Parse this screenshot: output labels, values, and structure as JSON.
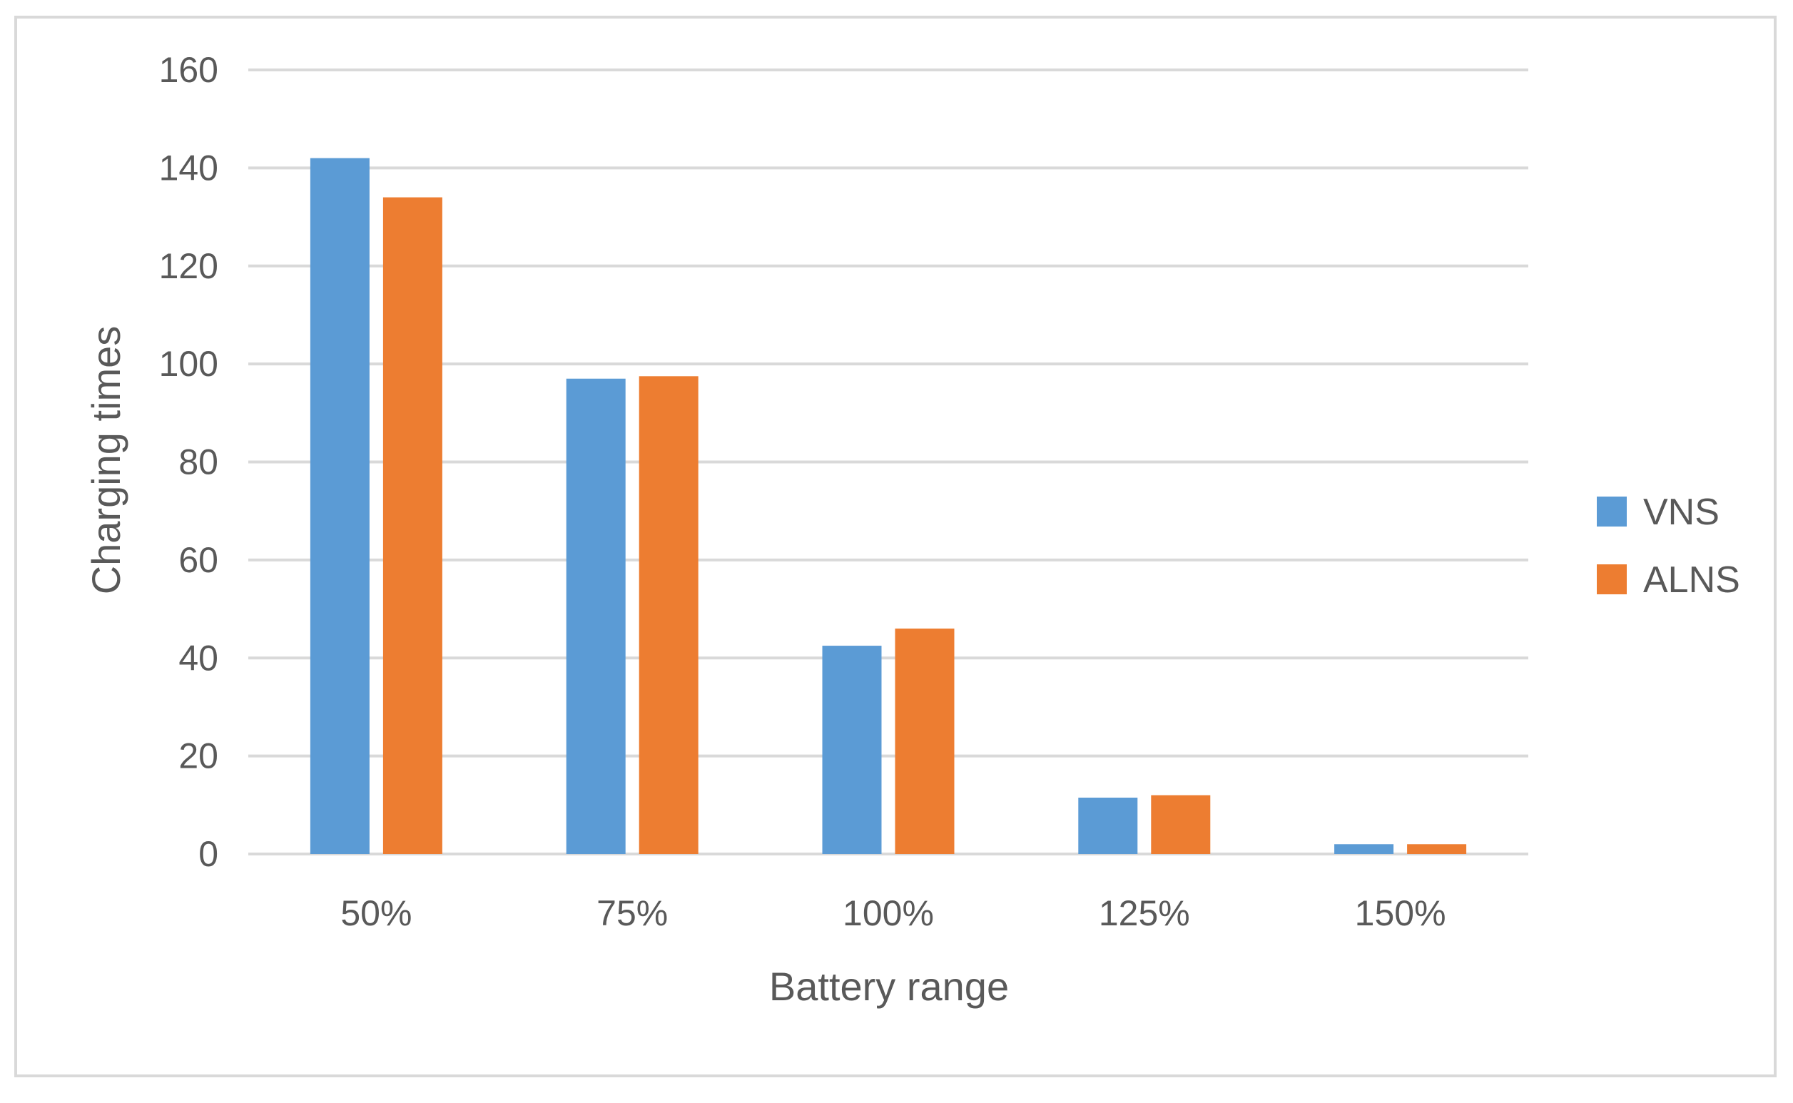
{
  "chart_data": {
    "type": "bar",
    "title": "",
    "xlabel": "Battery range",
    "ylabel": "Charging times",
    "categories": [
      "50%",
      "75%",
      "100%",
      "125%",
      "150%"
    ],
    "series": [
      {
        "name": "VNS",
        "color": "#5b9bd5",
        "values": [
          142,
          97,
          42.5,
          11.5,
          2
        ]
      },
      {
        "name": "ALNS",
        "color": "#ed7d31",
        "values": [
          134,
          97.5,
          46,
          12,
          2
        ]
      }
    ],
    "ylim": [
      0,
      160
    ],
    "yticks": [
      0,
      20,
      40,
      60,
      80,
      100,
      120,
      140,
      160
    ],
    "grid": true,
    "legend_position": "right",
    "gridline_color": "#d9d9d9"
  }
}
